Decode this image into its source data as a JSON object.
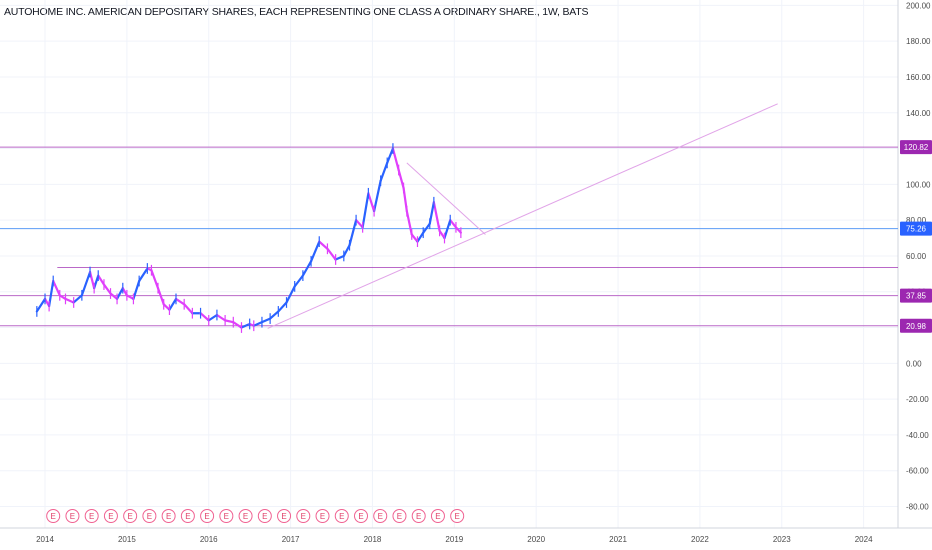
{
  "chart_data": {
    "type": "line",
    "title": "AUTOHOME INC. AMERICAN DEPOSITARY SHARES, EACH REPRESENTING ONE CLASS A ORDINARY SHARE., 1W, BATS",
    "xlabel": "",
    "ylabel": "",
    "x_ticks": [
      "2014",
      "2015",
      "2016",
      "2017",
      "2018",
      "2019",
      "2020",
      "2021",
      "2022",
      "2023",
      "2024"
    ],
    "y_ticks": [
      "200.00",
      "180.00",
      "160.00",
      "140.00",
      "120.00",
      "100.00",
      "80.00",
      "60.00",
      "40.00",
      "20.00",
      "0.00",
      "-20.00",
      "-40.00",
      "-60.00",
      "-80.00"
    ],
    "ylim": [
      -92,
      203
    ],
    "xlim": [
      2013.45,
      2024.42
    ],
    "grid": true,
    "series": [
      {
        "x": [
          2013.9,
          2014.0,
          2014.05,
          2014.1,
          2014.18,
          2014.25,
          2014.35,
          2014.45,
          2014.55,
          2014.6,
          2014.65,
          2014.72,
          2014.8,
          2014.88,
          2014.95,
          2015.0,
          2015.08,
          2015.15,
          2015.25,
          2015.3,
          2015.38,
          2015.45,
          2015.52,
          2015.6,
          2015.7,
          2015.8,
          2015.9,
          2016.0,
          2016.1,
          2016.2,
          2016.3,
          2016.4,
          2016.5,
          2016.55,
          2016.65,
          2016.75,
          2016.85,
          2016.95,
          2017.05,
          2017.15,
          2017.25,
          2017.35,
          2017.45,
          2017.55,
          2017.65,
          2017.72,
          2017.8,
          2017.88,
          2017.95,
          2018.02,
          2018.1,
          2018.18,
          2018.25,
          2018.32,
          2018.38,
          2018.42,
          2018.48,
          2018.55,
          2018.62,
          2018.7,
          2018.75,
          2018.82,
          2018.88,
          2018.95,
          2019.02,
          2019.08
        ],
        "values": [
          29,
          36,
          32,
          46,
          38,
          36,
          34,
          38,
          51,
          42,
          49,
          44,
          39,
          36,
          42,
          38,
          36,
          46,
          53,
          52,
          42,
          33,
          30,
          36,
          33,
          28,
          28,
          24,
          27,
          24,
          23,
          20,
          22,
          21,
          23,
          25,
          29,
          34,
          43,
          49,
          57,
          68,
          64,
          58,
          60,
          66,
          80,
          76,
          95,
          85,
          102,
          112,
          120,
          108,
          98,
          85,
          72,
          68,
          73,
          78,
          90,
          74,
          70,
          80,
          76,
          73
        ]
      }
    ],
    "horizontal_lines": [
      {
        "value": 120.82,
        "label": "120.82",
        "color": "#ba68c8"
      },
      {
        "value": 75.26,
        "label": "75.26",
        "color": "#5b9cf6"
      },
      {
        "value": 37.85,
        "label": "37.85",
        "color": "#ba68c8"
      },
      {
        "value": 20.98,
        "label": "20.98",
        "color": "#ba68c8"
      }
    ],
    "colors": {
      "label_purple": "#9c27b0",
      "label_blue": "#2962ff",
      "candle_up": "#2962ff",
      "candle_down": "#e040fb",
      "earnings": "#f06292"
    },
    "earnings_markers": [
      "E",
      "E",
      "E",
      "E",
      "E",
      "E",
      "E",
      "E",
      "E",
      "E",
      "E",
      "E",
      "E",
      "E",
      "E",
      "E",
      "E",
      "E",
      "E",
      "E",
      "E",
      "E"
    ]
  }
}
